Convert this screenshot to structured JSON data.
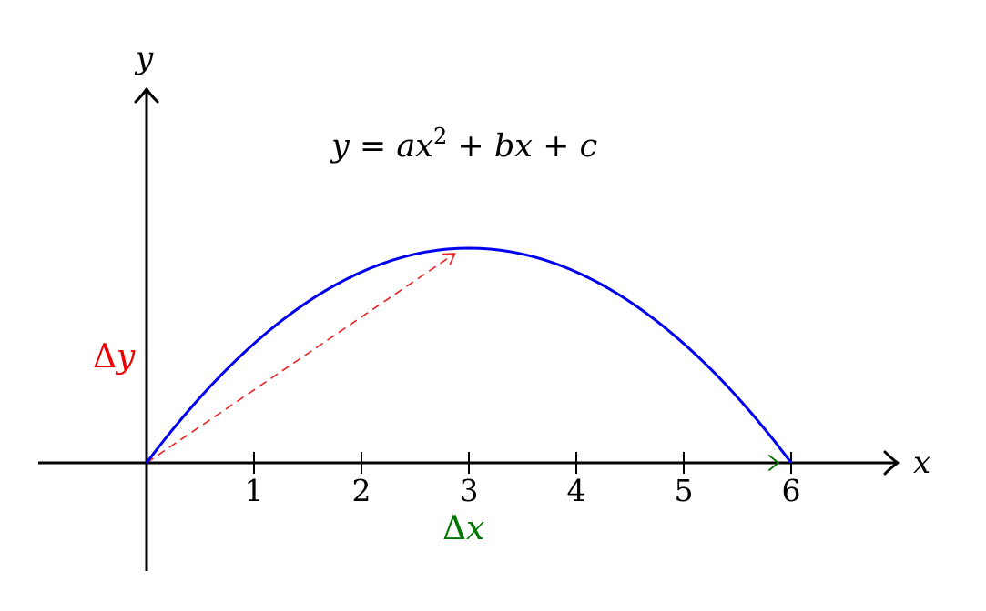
{
  "axes": {
    "x_label": "x",
    "y_label": "y",
    "x_ticks": [
      "1",
      "2",
      "3",
      "4",
      "5",
      "6"
    ],
    "x_range": [
      -1,
      7
    ],
    "y_range": [
      -1,
      3.5
    ]
  },
  "curve": {
    "equation": {
      "lhs": "y",
      "eq": " = ",
      "a": "a",
      "x1": "x",
      "exp": "2",
      "plus1": " + ",
      "b": "b",
      "x2": "x",
      "plus2": " + ",
      "c": "c"
    },
    "color": "#0000ee",
    "roots": [
      0,
      6
    ],
    "vertex": [
      3,
      2
    ]
  },
  "delta_y": {
    "delta": "Δ",
    "var": "y",
    "color": "#ee0000"
  },
  "delta_x": {
    "delta": "Δ",
    "var": "x",
    "color": "#007700"
  },
  "vector": {
    "from": [
      0,
      0
    ],
    "to": [
      2.87,
      1.95
    ],
    "color": "#ee2222"
  }
}
